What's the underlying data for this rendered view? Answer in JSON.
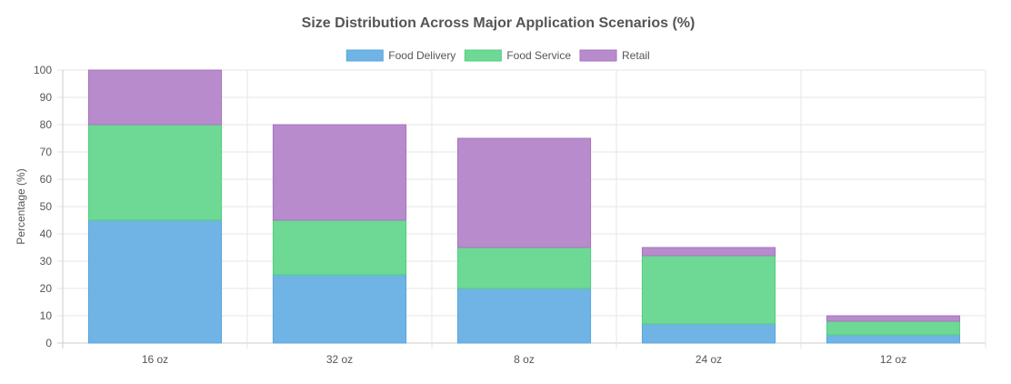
{
  "chart_data": {
    "type": "bar",
    "stacked": true,
    "title": "Size Distribution Across Major Application Scenarios (%)",
    "xlabel": "",
    "ylabel": "Percentage (%)",
    "ylim": [
      0,
      100
    ],
    "ytick_step": 10,
    "grid": true,
    "legend_position": "top",
    "categories": [
      "16 oz",
      "32 oz",
      "8 oz",
      "24 oz",
      "12 oz"
    ],
    "series": [
      {
        "name": "Food Delivery",
        "values": [
          45,
          25,
          20,
          7,
          3
        ],
        "color": "#6fb4e4",
        "border": "#5aa6dc"
      },
      {
        "name": "Food Service",
        "values": [
          35,
          20,
          15,
          25,
          5
        ],
        "color": "#6dd994",
        "border": "#55cd80"
      },
      {
        "name": "Retail",
        "values": [
          20,
          35,
          40,
          3,
          2
        ],
        "color": "#b88ccc",
        "border": "#a775bd"
      }
    ]
  }
}
